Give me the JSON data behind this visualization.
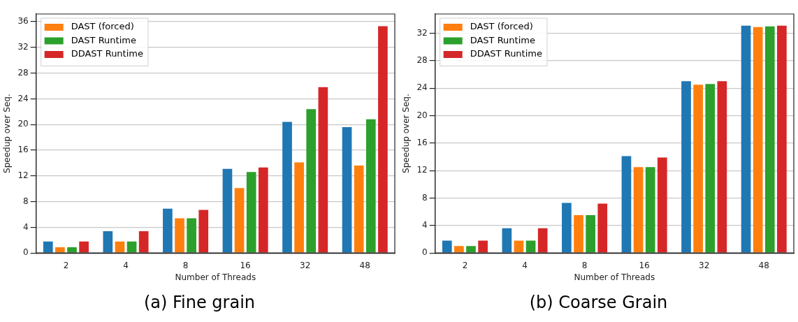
{
  "chart_data": [
    {
      "type": "bar",
      "title": "(a) Fine grain",
      "xlabel": "Number of Threads",
      "ylabel": "Speedup over Seq.",
      "categories": [
        "2",
        "4",
        "8",
        "16",
        "32",
        "48"
      ],
      "ylim": [
        0,
        37.2
      ],
      "yticks": [
        0,
        4,
        8,
        12,
        16,
        20,
        24,
        28,
        32,
        36
      ],
      "grid": "y",
      "legend": "top left",
      "series": [
        {
          "color": "#1f77b4",
          "values": [
            1.8,
            3.4,
            6.9,
            13.1,
            20.4,
            19.6
          ]
        },
        {
          "name": "DAST (forced)",
          "color": "#ff7f0e",
          "values": [
            0.9,
            1.8,
            5.4,
            10.1,
            14.1,
            13.6
          ]
        },
        {
          "name": "DAST Runtime",
          "color": "#2ca02c",
          "values": [
            0.9,
            1.8,
            5.4,
            12.6,
            22.4,
            20.8
          ]
        },
        {
          "name": "DDAST Runtime",
          "color": "#d62728",
          "values": [
            1.8,
            3.4,
            6.7,
            13.3,
            25.8,
            35.3
          ]
        }
      ]
    },
    {
      "type": "bar",
      "title": "(b) Coarse Grain",
      "xlabel": "Number of Threads",
      "ylabel": "Speedup over Seq.",
      "categories": [
        "2",
        "4",
        "8",
        "16",
        "32",
        "48"
      ],
      "ylim": [
        0,
        34.8
      ],
      "yticks": [
        0,
        4,
        8,
        12,
        16,
        20,
        24,
        28,
        32
      ],
      "grid": "y",
      "legend": "top left",
      "series": [
        {
          "color": "#1f77b4",
          "values": [
            1.8,
            3.6,
            7.3,
            14.1,
            25.0,
            33.1
          ]
        },
        {
          "name": "DAST (forced)",
          "color": "#ff7f0e",
          "values": [
            1.0,
            1.8,
            5.5,
            12.5,
            24.5,
            32.9
          ]
        },
        {
          "name": "DAST Runtime",
          "color": "#2ca02c",
          "values": [
            1.0,
            1.8,
            5.5,
            12.5,
            24.6,
            33.0
          ]
        },
        {
          "name": "DDAST Runtime",
          "color": "#d62728",
          "values": [
            1.8,
            3.6,
            7.2,
            13.9,
            25.0,
            33.1
          ]
        }
      ]
    }
  ]
}
